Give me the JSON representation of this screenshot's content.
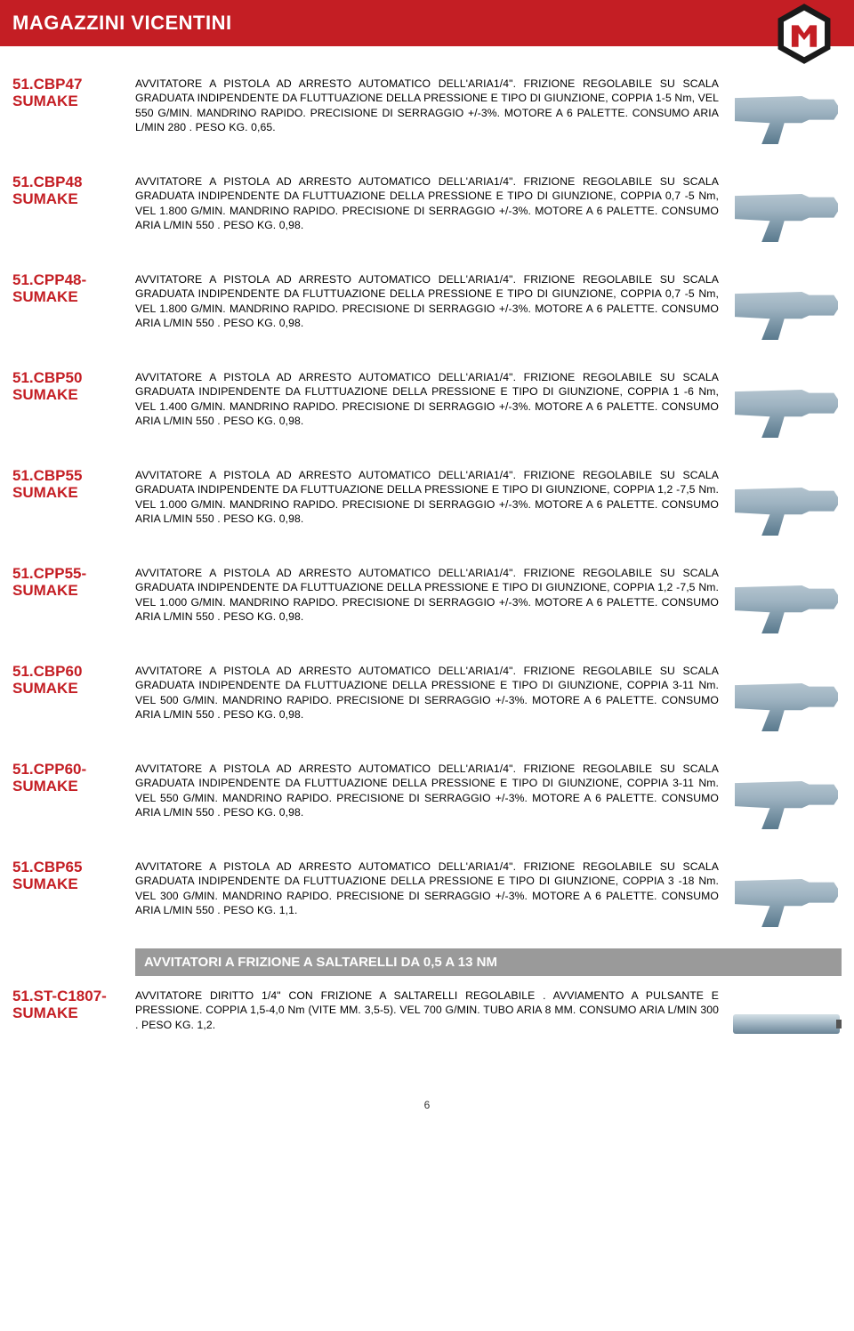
{
  "header": {
    "title": "MAGAZZINI VICENTINI"
  },
  "section_bar": "AVVITATORI A FRIZIONE A SALTARELLI DA 0,5 A 13 NM",
  "footer": {
    "page": "6"
  },
  "products": [
    {
      "code": "51.CBP47",
      "brand": "SUMAKE",
      "img": "pistol",
      "desc": "AVVITATORE A PISTOLA AD ARRESTO AUTOMATICO DELL'ARIA1/4\". FRIZIONE REGOLABILE SU SCALA GRADUATA INDIPENDENTE DA FLUTTUAZIONE DELLA PRESSIONE E TIPO DI GIUNZIONE, COPPIA 1-5 Nm, VEL 550 G/MIN. MANDRINO RAPIDO. PRECISIONE DI SERRAGGIO +/-3%. MOTORE A 6 PALETTE. CONSUMO ARIA L/MIN 280 . PESO KG. 0,65."
    },
    {
      "code": "51.CBP48",
      "brand": "SUMAKE",
      "img": "pistol",
      "desc": "AVVITATORE A PISTOLA AD ARRESTO AUTOMATICO DELL'ARIA1/4\". FRIZIONE REGOLABILE SU SCALA GRADUATA INDIPENDENTE DA FLUTTUAZIONE DELLA PRESSIONE E TIPO DI GIUNZIONE, COPPIA 0,7 -5 Nm, VEL 1.800 G/MIN. MANDRINO RAPIDO. PRECISIONE DI SERRAGGIO +/-3%. MOTORE A 6 PALETTE. CONSUMO ARIA L/MIN 550 . PESO KG. 0,98."
    },
    {
      "code": "51.CPP48-",
      "brand": "SUMAKE",
      "img": "pistol",
      "desc": "AVVITATORE A PISTOLA AD ARRESTO AUTOMATICO DELL'ARIA1/4\". FRIZIONE REGOLABILE SU SCALA GRADUATA INDIPENDENTE DA FLUTTUAZIONE DELLA PRESSIONE E TIPO DI GIUNZIONE, COPPIA 0,7 -5 Nm, VEL 1.800 G/MIN. MANDRINO RAPIDO. PRECISIONE DI SERRAGGIO +/-3%. MOTORE A 6 PALETTE. CONSUMO ARIA L/MIN 550 . PESO KG. 0,98."
    },
    {
      "code": "51.CBP50",
      "brand": "SUMAKE",
      "img": "pistol",
      "desc": "AVVITATORE A PISTOLA AD ARRESTO AUTOMATICO DELL'ARIA1/4\". FRIZIONE REGOLABILE SU SCALA GRADUATA INDIPENDENTE DA FLUTTUAZIONE DELLA PRESSIONE E TIPO DI GIUNZIONE, COPPIA 1 -6 Nm, VEL 1.400 G/MIN. MANDRINO RAPIDO. PRECISIONE DI SERRAGGIO +/-3%. MOTORE A 6 PALETTE. CONSUMO ARIA L/MIN 550 . PESO KG. 0,98."
    },
    {
      "code": "51.CBP55",
      "brand": "SUMAKE",
      "img": "pistol",
      "desc": "AVVITATORE A PISTOLA AD ARRESTO AUTOMATICO DELL'ARIA1/4\". FRIZIONE REGOLABILE SU SCALA GRADUATA INDIPENDENTE DA FLUTTUAZIONE DELLA PRESSIONE E TIPO DI GIUNZIONE, COPPIA 1,2 -7,5 Nm. VEL 1.000 G/MIN. MANDRINO RAPIDO. PRECISIONE DI SERRAGGIO +/-3%. MOTORE A 6 PALETTE. CONSUMO ARIA L/MIN 550 . PESO KG. 0,98."
    },
    {
      "code": "51.CPP55-",
      "brand": "SUMAKE",
      "img": "pistol",
      "desc": "AVVITATORE A PISTOLA AD ARRESTO AUTOMATICO DELL'ARIA1/4\". FRIZIONE REGOLABILE SU SCALA GRADUATA INDIPENDENTE DA FLUTTUAZIONE DELLA PRESSIONE E TIPO DI GIUNZIONE, COPPIA 1,2 -7,5 Nm. VEL 1.000 G/MIN. MANDRINO RAPIDO. PRECISIONE DI SERRAGGIO +/-3%. MOTORE A 6 PALETTE. CONSUMO ARIA L/MIN 550 . PESO KG. 0,98."
    },
    {
      "code": "51.CBP60",
      "brand": "SUMAKE",
      "img": "pistol",
      "desc": "AVVITATORE A PISTOLA AD ARRESTO AUTOMATICO DELL'ARIA1/4\". FRIZIONE REGOLABILE SU SCALA GRADUATA INDIPENDENTE DA FLUTTUAZIONE DELLA PRESSIONE E TIPO DI GIUNZIONE, COPPIA 3-11 Nm. VEL 500 G/MIN. MANDRINO RAPIDO. PRECISIONE DI SERRAGGIO +/-3%. MOTORE A 6 PALETTE. CONSUMO ARIA L/MIN 550 . PESO KG. 0,98."
    },
    {
      "code": "51.CPP60-",
      "brand": "SUMAKE",
      "img": "pistol",
      "desc": "AVVITATORE A PISTOLA AD ARRESTO AUTOMATICO DELL'ARIA1/4\". FRIZIONE REGOLABILE SU SCALA GRADUATA INDIPENDENTE DA FLUTTUAZIONE DELLA PRESSIONE E TIPO DI GIUNZIONE, COPPIA 3-11 Nm. VEL 550 G/MIN. MANDRINO RAPIDO. PRECISIONE DI SERRAGGIO +/-3%. MOTORE A 6 PALETTE. CONSUMO ARIA L/MIN 550 . PESO KG. 0,98."
    },
    {
      "code": "51.CBP65",
      "brand": "SUMAKE",
      "img": "pistol",
      "desc": "AVVITATORE A PISTOLA AD ARRESTO AUTOMATICO DELL'ARIA1/4\". FRIZIONE REGOLABILE SU SCALA GRADUATA INDIPENDENTE DA FLUTTUAZIONE DELLA PRESSIONE E TIPO DI GIUNZIONE, COPPIA 3 -18 Nm. VEL 300 G/MIN. MANDRINO RAPIDO. PRECISIONE DI SERRAGGIO +/-3%. MOTORE A 6 PALETTE. CONSUMO ARIA L/MIN 550 . PESO KG. 1,1."
    }
  ],
  "product_after_bar": {
    "code": "51.ST-C1807-",
    "brand": "SUMAKE",
    "img": "straight",
    "desc": "AVVITATORE DIRITTO 1/4\" CON FRIZIONE A SALTARELLI REGOLABILE . AVVIAMENTO A PULSANTE E PRESSIONE. COPPIA 1,5-4,0 Nm (VITE MM. 3,5-5). VEL 700 G/MIN. TUBO ARIA 8 MM. CONSUMO ARIA L/MIN 300 . PESO KG. 1,2."
  }
}
